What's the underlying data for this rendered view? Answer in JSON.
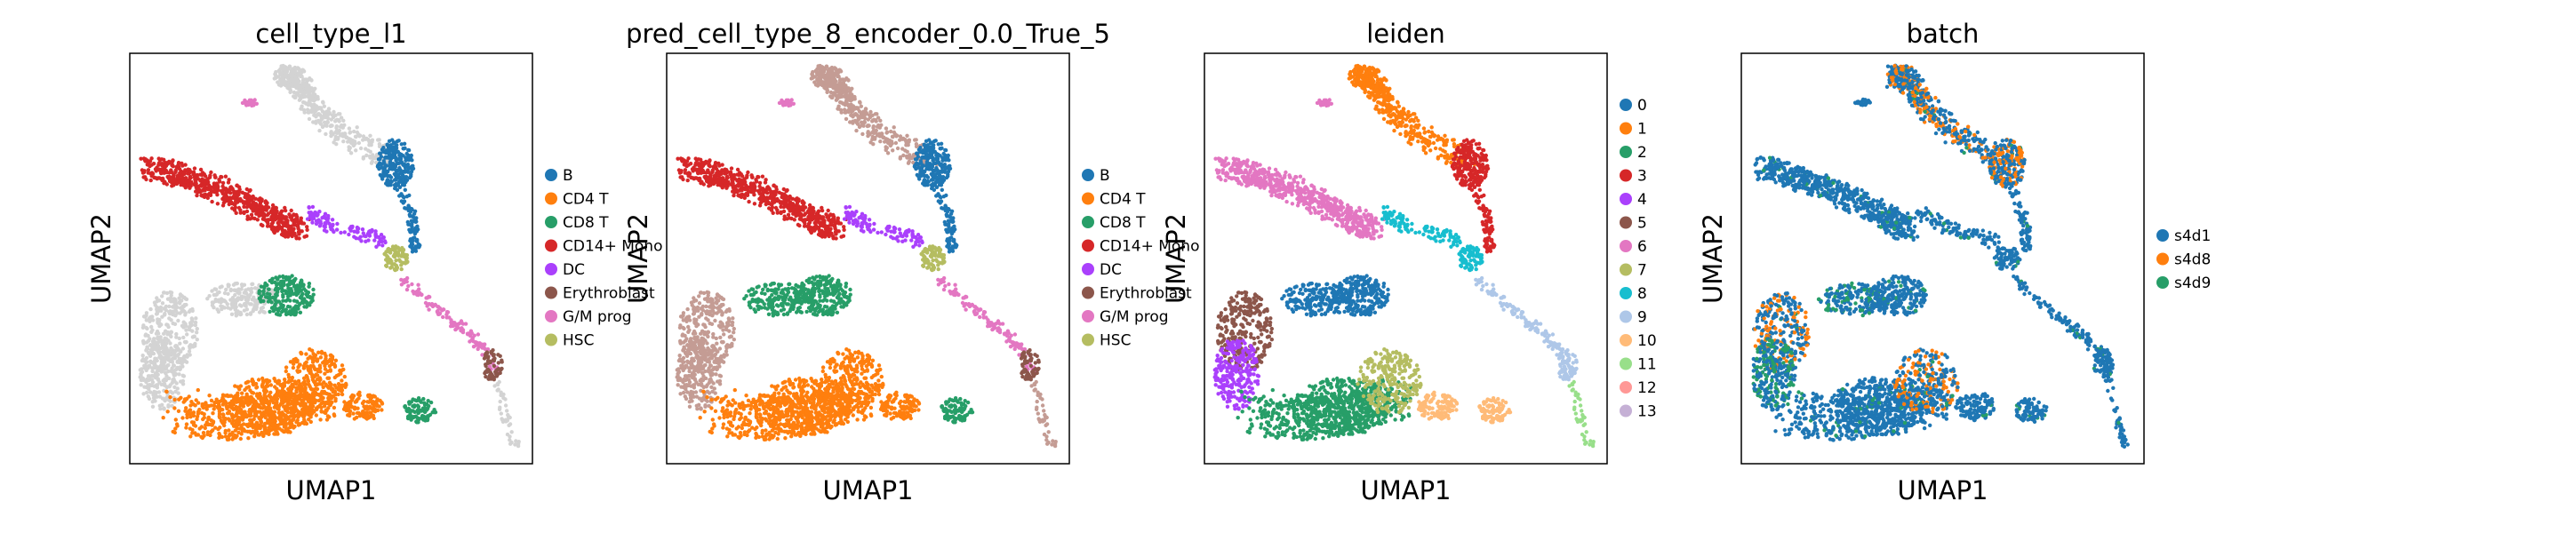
{
  "chart_data": [
    {
      "type": "scatter",
      "title": "cell_type_l1",
      "xlabel": "UMAP1",
      "ylabel": "UMAP2",
      "grid": false,
      "legend_placement": "right",
      "series": [
        {
          "name": "B",
          "color": "#1f77b4"
        },
        {
          "name": "CD4 T",
          "color": "#ff7f0e"
        },
        {
          "name": "CD8 T",
          "color": "#279e68"
        },
        {
          "name": "CD14+ Mono",
          "color": "#d62728"
        },
        {
          "name": "DC",
          "color": "#aa40fc"
        },
        {
          "name": "Erythroblast",
          "color": "#8c564b"
        },
        {
          "name": "G/M prog",
          "color": "#e377c2"
        },
        {
          "name": "HSC",
          "color": "#b5bd61"
        }
      ],
      "other_points_color": "#d3d3d3"
    },
    {
      "type": "scatter",
      "title": "pred_cell_type_8_encoder_0.0_True_5",
      "xlabel": "UMAP1",
      "ylabel": "UMAP2",
      "grid": false,
      "legend_placement": "right",
      "series": [
        {
          "name": "B",
          "color": "#1f77b4"
        },
        {
          "name": "CD4 T",
          "color": "#ff7f0e"
        },
        {
          "name": "CD8 T",
          "color": "#279e68"
        },
        {
          "name": "CD14+ Mono",
          "color": "#d62728"
        },
        {
          "name": "DC",
          "color": "#aa40fc"
        },
        {
          "name": "Erythroblast",
          "color": "#8c564b"
        },
        {
          "name": "G/M prog",
          "color": "#e377c2"
        },
        {
          "name": "HSC",
          "color": "#b5bd61"
        }
      ],
      "other_points_color": "#c49c94"
    },
    {
      "type": "scatter",
      "title": "leiden",
      "xlabel": "UMAP1",
      "ylabel": "UMAP2",
      "grid": false,
      "legend_placement": "right",
      "series": [
        {
          "name": "0",
          "color": "#1f77b4"
        },
        {
          "name": "1",
          "color": "#ff7f0e"
        },
        {
          "name": "2",
          "color": "#279e68"
        },
        {
          "name": "3",
          "color": "#d62728"
        },
        {
          "name": "4",
          "color": "#aa40fc"
        },
        {
          "name": "5",
          "color": "#8c564b"
        },
        {
          "name": "6",
          "color": "#e377c2"
        },
        {
          "name": "7",
          "color": "#b5bd61"
        },
        {
          "name": "8",
          "color": "#17becf"
        },
        {
          "name": "9",
          "color": "#aec7e8"
        },
        {
          "name": "10",
          "color": "#ffbb78"
        },
        {
          "name": "11",
          "color": "#98df8a"
        },
        {
          "name": "12",
          "color": "#ff9896"
        },
        {
          "name": "13",
          "color": "#c5b0d5"
        }
      ]
    },
    {
      "type": "scatter",
      "title": "batch",
      "xlabel": "UMAP1",
      "ylabel": "UMAP2",
      "grid": false,
      "legend_placement": "right",
      "series": [
        {
          "name": "s4d1",
          "color": "#1f77b4"
        },
        {
          "name": "s4d8",
          "color": "#ff7f0e"
        },
        {
          "name": "s4d9",
          "color": "#279e68"
        }
      ]
    }
  ]
}
